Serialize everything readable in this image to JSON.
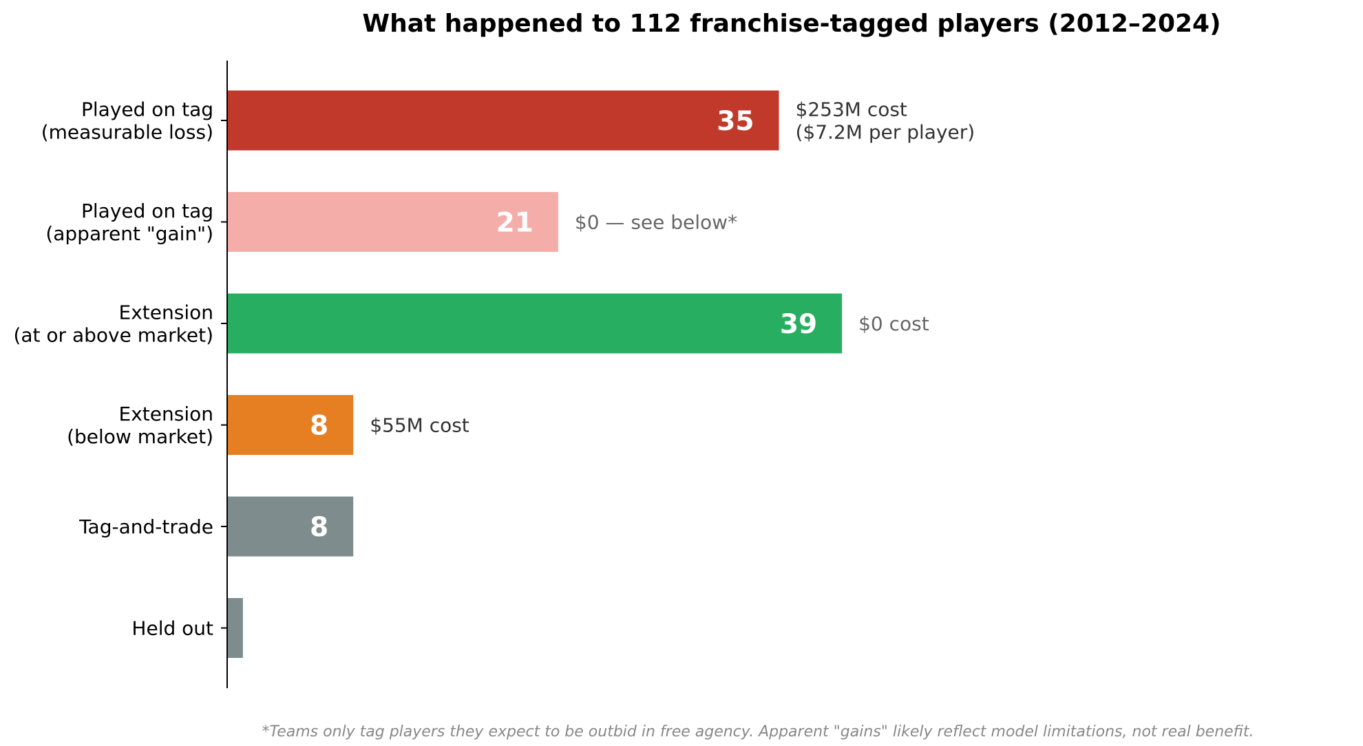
{
  "chart_data": {
    "type": "bar",
    "orientation": "horizontal",
    "title": "What happened to 112 franchise-tagged players (2012–2024)",
    "categories": [
      "Played on tag\n(measurable loss)",
      "Played on tag\n(apparent \"gain\")",
      "Extension\n(at or above market)",
      "Extension\n(below market)",
      "Tag-and-trade",
      "Held out"
    ],
    "values": [
      35,
      21,
      39,
      8,
      8,
      1
    ],
    "value_labels": [
      "35",
      "21",
      "39",
      "8",
      "8",
      ""
    ],
    "colors": [
      "#c0392b",
      "#f4ada8",
      "#27ae60",
      "#e67e22",
      "#7f8c8d",
      "#7f8c8d"
    ],
    "annotations": [
      {
        "lines": [
          "$253M cost",
          "($7.2M per player)"
        ],
        "color": "#333333"
      },
      {
        "lines": [
          "$0 — see below*"
        ],
        "color": "#666666"
      },
      {
        "lines": [
          "$0 cost"
        ],
        "color": "#666666"
      },
      {
        "lines": [
          "$55M cost"
        ],
        "color": "#333333"
      },
      {
        "lines": [],
        "color": "#333333"
      },
      {
        "lines": [],
        "color": "#333333"
      }
    ],
    "xlim": [
      0,
      70
    ],
    "grid": false,
    "footnote": "*Teams only tag players they expect to be outbid in free agency. Apparent \"gains\" likely reflect model limitations, not real benefit."
  }
}
